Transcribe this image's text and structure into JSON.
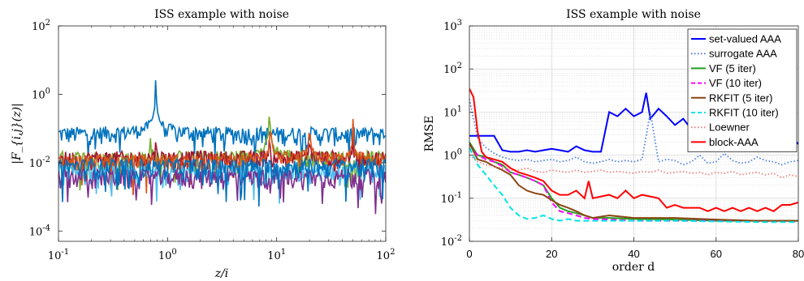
{
  "chart_data": [
    {
      "type": "line",
      "title": "ISS example with noise",
      "xlabel": "z/i",
      "ylabel": "|F_{i,j}(z)|",
      "x_scale": "log",
      "y_scale": "log",
      "xlim": [
        0.1,
        100
      ],
      "ylim": [
        5e-05,
        100
      ],
      "x_ticks": [
        {
          "value": 0.1,
          "base": "10",
          "exp": "-1"
        },
        {
          "value": 1,
          "base": "10",
          "exp": "0"
        },
        {
          "value": 10,
          "base": "10",
          "exp": "1"
        },
        {
          "value": 100,
          "base": "10",
          "exp": "2"
        }
      ],
      "y_ticks": [
        {
          "value": 0.0001,
          "base": "10",
          "exp": "-4"
        },
        {
          "value": 0.01,
          "base": "10",
          "exp": "-2"
        },
        {
          "value": 1,
          "base": "10",
          "exp": "0"
        },
        {
          "value": 100,
          "base": "10",
          "exp": "2"
        }
      ],
      "grid": false,
      "series": [
        {
          "color": "#0072BD",
          "resonances": [
            [
              0.78,
              40
            ],
            [
              2.0,
              0.25
            ],
            [
              3.9,
              0.04
            ],
            [
              20,
              0.3
            ]
          ],
          "base": 0.05
        },
        {
          "color": "#77AC30",
          "resonances": [
            [
              0.7,
              0.6
            ],
            [
              8.6,
              7
            ]
          ],
          "base": 0.01
        },
        {
          "color": "#A2142F",
          "resonances": [
            [
              0.78,
              0.5
            ],
            [
              2.0,
              0.15
            ],
            [
              8.6,
              1.0
            ],
            [
              20,
              0.9
            ],
            [
              50,
              0.6
            ]
          ],
          "base": 0.01
        },
        {
          "color": "#D95319",
          "resonances": [
            [
              8.8,
              3
            ],
            [
              20,
              2.5
            ],
            [
              50,
              2
            ]
          ],
          "base": 0.008
        },
        {
          "color": "#4DBEEE",
          "resonances": [],
          "base": 0.004
        },
        {
          "color": "#7E2F8E",
          "resonances": [],
          "base": 0.003
        },
        {
          "color": "#0072BD",
          "resonances": [],
          "base": 0.006
        }
      ]
    },
    {
      "type": "line",
      "title": "ISS example with noise",
      "xlabel": "order d",
      "ylabel": "RMSE",
      "y_scale": "log",
      "xlim": [
        0,
        80
      ],
      "ylim": [
        0.01,
        1000
      ],
      "x_ticks": [
        0,
        20,
        40,
        60,
        80
      ],
      "y_ticks": [
        {
          "value": 0.01,
          "base": "10",
          "exp": "-2"
        },
        {
          "value": 0.1,
          "base": "10",
          "exp": "-1"
        },
        {
          "value": 1,
          "base": "10",
          "exp": "0"
        },
        {
          "value": 10,
          "base": "10",
          "exp": "1"
        },
        {
          "value": 100,
          "base": "10",
          "exp": "2"
        },
        {
          "value": 1000,
          "base": "10",
          "exp": "3"
        }
      ],
      "grid": true,
      "legend_position": "top-right",
      "series": [
        {
          "name": "set-valued AAA",
          "color": "#0000FF",
          "style": "solid",
          "x": [
            0,
            2,
            4,
            6,
            8,
            10,
            12,
            14,
            16,
            18,
            20,
            22,
            24,
            26,
            28,
            30,
            32,
            34,
            36,
            38,
            40,
            42,
            43,
            44,
            46,
            48,
            50,
            52,
            54,
            56,
            58,
            60,
            62,
            64,
            66,
            68,
            70,
            72,
            74,
            76,
            78,
            80
          ],
          "y": [
            2.8,
            2.8,
            2.8,
            2.8,
            1.3,
            1.2,
            1.2,
            1.3,
            1.2,
            1.3,
            1.4,
            1.3,
            1.2,
            1.6,
            1.3,
            1.2,
            1.2,
            10,
            8,
            12,
            8,
            10,
            28,
            7,
            12,
            8,
            5,
            7,
            4,
            6,
            3.5,
            6,
            5,
            4,
            6,
            3,
            6,
            5,
            4,
            3,
            3,
            1.8
          ]
        },
        {
          "name": "surrogate AAA",
          "color": "#4D7FE0",
          "style": "dotted",
          "x": [
            0,
            2,
            4,
            6,
            8,
            10,
            12,
            14,
            16,
            18,
            20,
            22,
            24,
            26,
            28,
            30,
            32,
            34,
            36,
            38,
            40,
            42,
            44,
            46,
            48,
            50,
            52,
            54,
            56,
            58,
            60,
            62,
            64,
            66,
            68,
            70,
            72,
            74,
            76,
            78,
            80
          ],
          "y": [
            20,
            2.5,
            1.5,
            1.1,
            0.9,
            0.8,
            0.75,
            0.8,
            0.7,
            0.75,
            0.8,
            0.7,
            0.75,
            0.9,
            0.7,
            0.65,
            0.7,
            0.8,
            0.7,
            0.75,
            0.7,
            0.8,
            10,
            0.7,
            0.8,
            0.75,
            0.6,
            0.7,
            1.0,
            0.65,
            0.7,
            1.1,
            0.75,
            0.65,
            0.7,
            0.9,
            0.75,
            0.7,
            0.6,
            0.7,
            0.75
          ]
        },
        {
          "name": "VF (5 iter)",
          "color": "#22A022",
          "style": "solid",
          "x": [
            0,
            2,
            4,
            6,
            8,
            10,
            12,
            14,
            16,
            18,
            20,
            22,
            24,
            26,
            28,
            30,
            34,
            40,
            50,
            60,
            70,
            80
          ],
          "y": [
            2.0,
            1.0,
            0.9,
            0.7,
            0.6,
            0.4,
            0.35,
            0.3,
            0.25,
            0.2,
            0.1,
            0.06,
            0.05,
            0.045,
            0.04,
            0.035,
            0.035,
            0.033,
            0.032,
            0.03,
            0.03,
            0.03
          ]
        },
        {
          "name": "VF (10 iter)",
          "color": "#FF00FF",
          "style": "dashed",
          "x": [
            0,
            2,
            4,
            6,
            8,
            10,
            12,
            14,
            16,
            18,
            20,
            22,
            24,
            26,
            28,
            30,
            34,
            40,
            50,
            60,
            70,
            80
          ],
          "y": [
            1.8,
            1.0,
            0.8,
            0.7,
            0.55,
            0.4,
            0.35,
            0.3,
            0.25,
            0.2,
            0.08,
            0.05,
            0.045,
            0.04,
            0.035,
            0.033,
            0.032,
            0.03,
            0.03,
            0.03,
            0.029,
            0.029
          ]
        },
        {
          "name": "RKFIT (5 iter)",
          "color": "#8B4513",
          "style": "solid",
          "x": [
            0,
            2,
            4,
            6,
            8,
            10,
            12,
            14,
            16,
            18,
            20,
            22,
            24,
            26,
            28,
            30,
            34,
            40,
            50,
            60,
            70,
            80
          ],
          "y": [
            1.9,
            0.8,
            0.7,
            0.55,
            0.45,
            0.35,
            0.2,
            0.15,
            0.13,
            0.12,
            0.09,
            0.07,
            0.06,
            0.05,
            0.04,
            0.035,
            0.04,
            0.035,
            0.035,
            0.032,
            0.03,
            0.03
          ]
        },
        {
          "name": "RKFIT (10 iter)",
          "color": "#00E5E5",
          "style": "dashed",
          "x": [
            0,
            2,
            4,
            6,
            8,
            10,
            12,
            14,
            16,
            18,
            20,
            22,
            24,
            26,
            28,
            30,
            34,
            40,
            50,
            60,
            70,
            80
          ],
          "y": [
            1.5,
            0.6,
            0.35,
            0.2,
            0.12,
            0.06,
            0.04,
            0.033,
            0.035,
            0.04,
            0.033,
            0.03,
            0.033,
            0.03,
            0.03,
            0.03,
            0.03,
            0.03,
            0.03,
            0.029,
            0.028,
            0.028
          ]
        },
        {
          "name": "Loewner",
          "color": "#F08080",
          "style": "dotted",
          "x": [
            0,
            2,
            4,
            6,
            8,
            10,
            12,
            14,
            16,
            18,
            20,
            22,
            24,
            26,
            28,
            30,
            32,
            34,
            36,
            38,
            40,
            42,
            44,
            46,
            48,
            50,
            52,
            54,
            56,
            58,
            60,
            62,
            64,
            66,
            68,
            70,
            72,
            74,
            76,
            78,
            80
          ],
          "y": [
            1.0,
            0.7,
            0.6,
            0.55,
            0.5,
            0.45,
            0.45,
            0.5,
            0.42,
            0.4,
            0.45,
            0.42,
            0.4,
            0.45,
            0.4,
            0.42,
            0.45,
            0.4,
            0.42,
            0.4,
            0.38,
            0.42,
            0.4,
            0.45,
            0.38,
            0.4,
            0.42,
            0.38,
            0.4,
            0.35,
            0.4,
            0.38,
            0.42,
            0.35,
            0.38,
            0.4,
            0.35,
            0.38,
            0.3,
            0.35,
            0.32
          ]
        },
        {
          "name": "block-AAA",
          "color": "#FF0000",
          "style": "solid",
          "x": [
            0,
            1,
            2,
            3,
            4,
            6,
            8,
            10,
            12,
            14,
            16,
            18,
            20,
            22,
            24,
            26,
            28,
            29,
            30,
            32,
            34,
            36,
            38,
            40,
            42,
            44,
            46,
            48,
            50,
            52,
            54,
            56,
            58,
            60,
            62,
            64,
            66,
            68,
            70,
            72,
            74,
            76,
            78,
            80
          ],
          "y": [
            35,
            22,
            3.5,
            1.2,
            0.9,
            0.8,
            0.7,
            0.5,
            0.4,
            0.35,
            0.3,
            0.25,
            0.15,
            0.12,
            0.12,
            0.15,
            0.1,
            0.25,
            0.1,
            0.11,
            0.12,
            0.1,
            0.15,
            0.1,
            0.12,
            0.11,
            0.1,
            0.06,
            0.07,
            0.06,
            0.06,
            0.06,
            0.05,
            0.06,
            0.05,
            0.06,
            0.05,
            0.06,
            0.05,
            0.06,
            0.05,
            0.07,
            0.07,
            0.08
          ]
        }
      ]
    }
  ]
}
